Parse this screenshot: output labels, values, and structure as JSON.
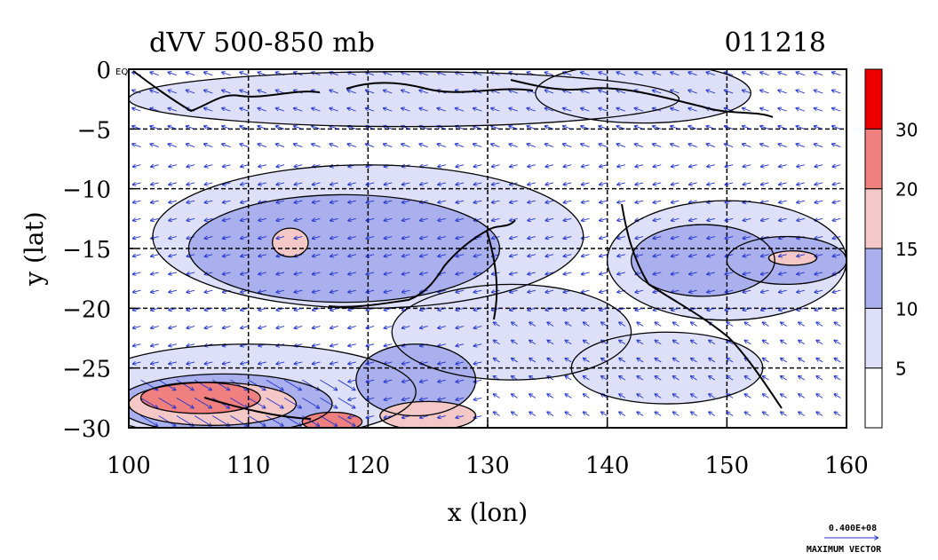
{
  "chart_data": {
    "type": "heatmap",
    "title": "dVV 500-850 mb",
    "date_label": "011218",
    "xlabel": "x (lon)",
    "ylabel": "y (lat)",
    "xlim": [
      100,
      160
    ],
    "ylim": [
      -30,
      0
    ],
    "xticks": [
      100,
      110,
      120,
      130,
      140,
      150,
      160
    ],
    "yticks": [
      0,
      -5,
      -10,
      -15,
      -20,
      -25,
      -30
    ],
    "ytick_labels": [
      "0 EQ",
      "−5",
      "−10",
      "−15",
      "−20",
      "−25",
      "−30"
    ],
    "grid": true,
    "colorbar": {
      "levels": [
        0,
        5,
        10,
        15,
        20,
        30,
        40
      ],
      "tick_labels": [
        "5",
        "10",
        "15",
        "20",
        "30"
      ],
      "colors": [
        "#ffffff",
        "#dde0f8",
        "#aab0ee",
        "#f5c8c8",
        "#f08080",
        "#ee0000"
      ]
    },
    "contour_regions": [
      {
        "level": 5,
        "cx": 123,
        "cy": -2.5,
        "rx": 23,
        "ry": 2.3
      },
      {
        "level": 5,
        "cx": 143,
        "cy": -2.0,
        "rx": 9,
        "ry": 2.5
      },
      {
        "level": 5,
        "cx": 150,
        "cy": -16.0,
        "rx": 10,
        "ry": 5
      },
      {
        "level": 5,
        "cx": 120,
        "cy": -14.0,
        "rx": 18,
        "ry": 6
      },
      {
        "level": 5,
        "cx": 110,
        "cy": -27.0,
        "rx": 14,
        "ry": 4
      },
      {
        "level": 5,
        "cx": 132,
        "cy": -22.0,
        "rx": 10,
        "ry": 4
      },
      {
        "level": 5,
        "cx": 145,
        "cy": -25.0,
        "rx": 8,
        "ry": 3
      },
      {
        "level": 10,
        "cx": 118,
        "cy": -15.0,
        "rx": 13,
        "ry": 4.5
      },
      {
        "level": 10,
        "cx": 148,
        "cy": -16.0,
        "rx": 6,
        "ry": 3
      },
      {
        "level": 10,
        "cx": 155,
        "cy": -16.0,
        "rx": 5,
        "ry": 2
      },
      {
        "level": 10,
        "cx": 108,
        "cy": -28.0,
        "rx": 9,
        "ry": 2.5
      },
      {
        "level": 10,
        "cx": 124,
        "cy": -26.0,
        "rx": 5,
        "ry": 3
      },
      {
        "level": 15,
        "cx": 113.5,
        "cy": -14.5,
        "rx": 1.5,
        "ry": 1.2
      },
      {
        "level": 15,
        "cx": 155.5,
        "cy": -15.8,
        "rx": 2,
        "ry": 0.6
      },
      {
        "level": 15,
        "cx": 107,
        "cy": -28.0,
        "rx": 7,
        "ry": 1.8
      },
      {
        "level": 15,
        "cx": 125,
        "cy": -29.0,
        "rx": 4,
        "ry": 1.2
      },
      {
        "level": 20,
        "cx": 106,
        "cy": -27.5,
        "rx": 5,
        "ry": 1.3
      },
      {
        "level": 20,
        "cx": 117,
        "cy": -29.5,
        "rx": 2.5,
        "ry": 0.8
      }
    ],
    "vectors": {
      "reference_label": "0.400E+08",
      "reference_caption": "MAXIMUM VECTOR",
      "dominant_direction": "easterly (toward west) with southerly component near 25-30S"
    }
  }
}
